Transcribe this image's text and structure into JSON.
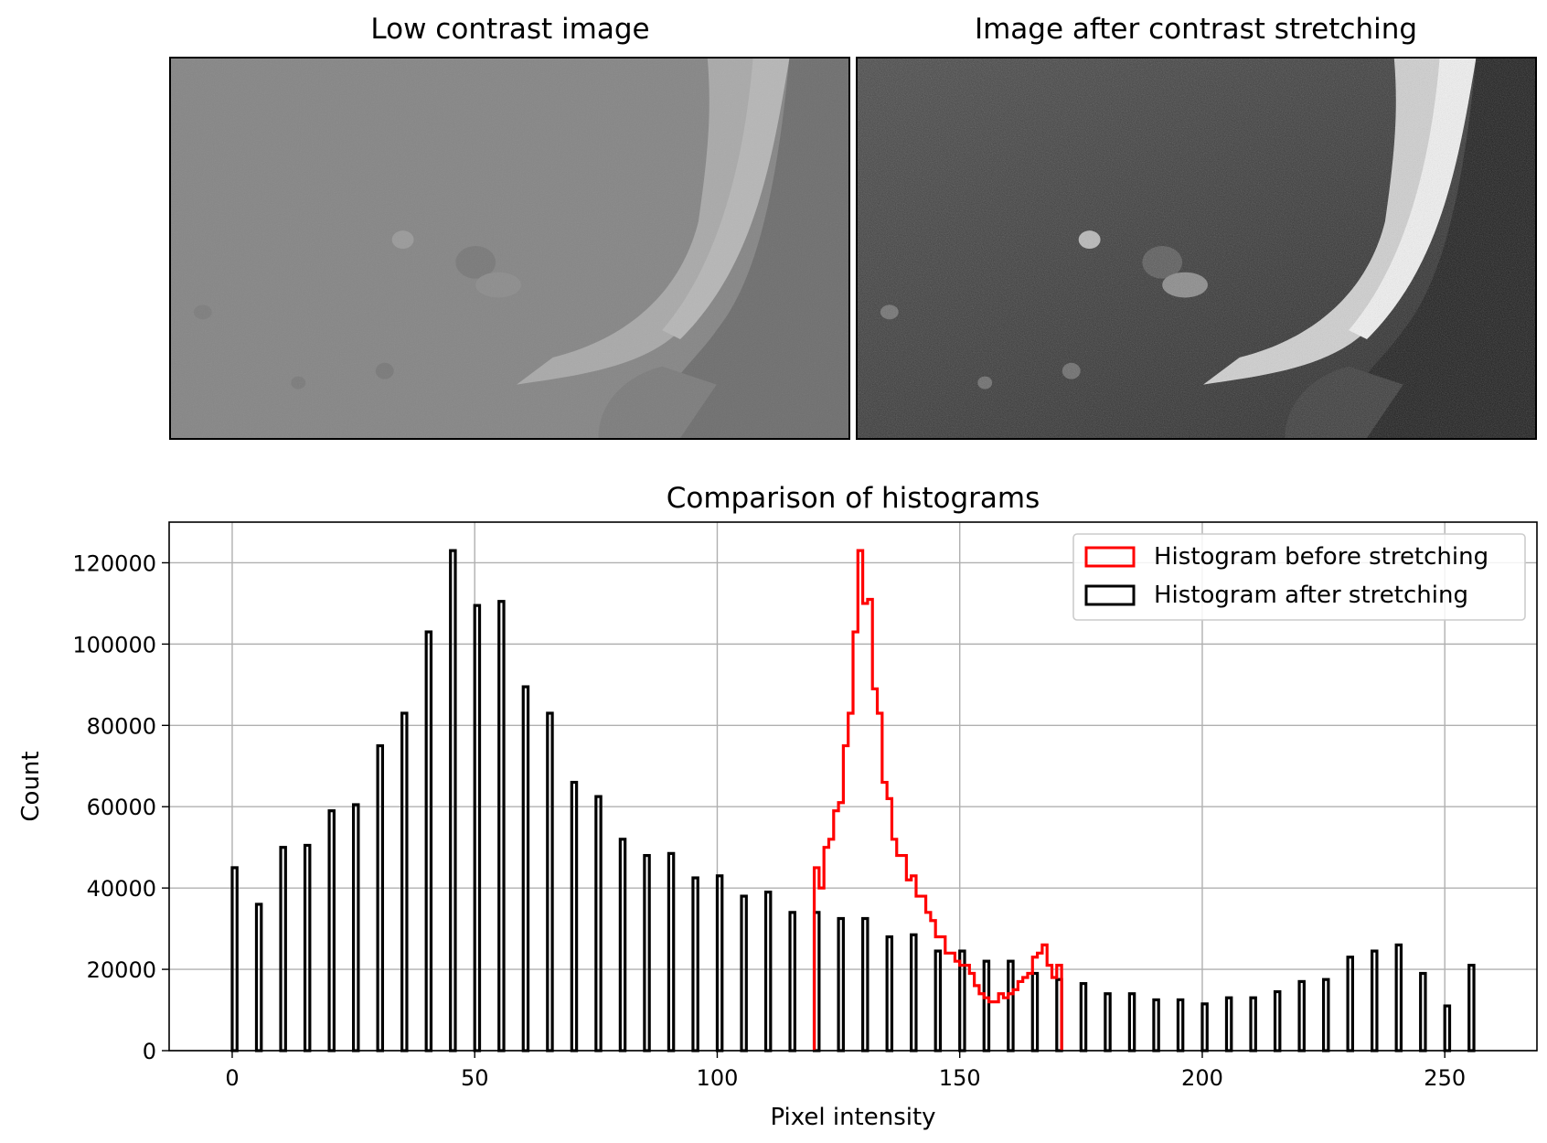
{
  "images": {
    "left_title": "Low contrast image",
    "right_title": "Image after contrast stretching"
  },
  "colors": {
    "before": "#ff0000",
    "after": "#000000",
    "grid": "#b0b0b0"
  },
  "chart_data": {
    "type": "bar",
    "title": "Comparison of histograms",
    "xlabel": "Pixel intensity",
    "ylabel": "Count",
    "xlim": [
      -13,
      269
    ],
    "ylim": [
      0,
      130000
    ],
    "xticks": [
      0,
      50,
      100,
      150,
      200,
      250
    ],
    "yticks": [
      0,
      20000,
      40000,
      60000,
      80000,
      100000,
      120000
    ],
    "grid": true,
    "legend_position": "top-right",
    "series": [
      {
        "name": "Histogram before stretching",
        "style": "step",
        "color": "#ff0000",
        "x": [
          120,
          121,
          122,
          123,
          124,
          125,
          126,
          127,
          128,
          129,
          130,
          131,
          132,
          133,
          134,
          135,
          136,
          137,
          138,
          139,
          140,
          141,
          142,
          143,
          144,
          145,
          146,
          147,
          148,
          149,
          150,
          151,
          152,
          153,
          154,
          155,
          156,
          157,
          158,
          159,
          160,
          161,
          162,
          163,
          164,
          165,
          166,
          167,
          168,
          169,
          170
        ],
        "values": [
          45000,
          40000,
          50000,
          52000,
          59000,
          61000,
          75000,
          83000,
          103000,
          123000,
          110000,
          111000,
          89000,
          83000,
          66000,
          62000,
          52000,
          48000,
          48000,
          42000,
          43000,
          38000,
          38000,
          34000,
          32000,
          28000,
          28000,
          24000,
          24000,
          22000,
          21000,
          21000,
          19000,
          16000,
          14000,
          13000,
          12000,
          12000,
          14000,
          13000,
          14000,
          15000,
          17000,
          18000,
          19000,
          23000,
          24000,
          26000,
          21000,
          18000,
          21000
        ]
      },
      {
        "name": "Histogram after stretching",
        "style": "bars",
        "color": "#000000",
        "x": [
          0,
          5,
          10,
          15,
          20,
          25,
          30,
          35,
          40,
          45,
          50,
          55,
          60,
          65,
          70,
          75,
          80,
          85,
          90,
          95,
          100,
          105,
          110,
          115,
          120,
          125,
          130,
          135,
          140,
          145,
          150,
          155,
          160,
          165,
          170,
          175,
          180,
          185,
          190,
          195,
          200,
          205,
          210,
          215,
          220,
          225,
          230,
          235,
          240,
          245,
          250,
          255
        ],
        "values": [
          45000,
          36000,
          50000,
          50500,
          59000,
          60500,
          75000,
          83000,
          103000,
          123000,
          109500,
          110500,
          89500,
          83000,
          66000,
          62500,
          52000,
          48000,
          48500,
          42500,
          43000,
          38000,
          39000,
          34000,
          34000,
          32500,
          32500,
          28000,
          28500,
          24500,
          24500,
          22000,
          22000,
          19000,
          17500,
          16500,
          14000,
          14000,
          12500,
          12500,
          11500,
          13000,
          13000,
          14500,
          17000,
          17500,
          23000,
          24500,
          26000,
          19000,
          11000,
          21000
        ]
      }
    ]
  }
}
